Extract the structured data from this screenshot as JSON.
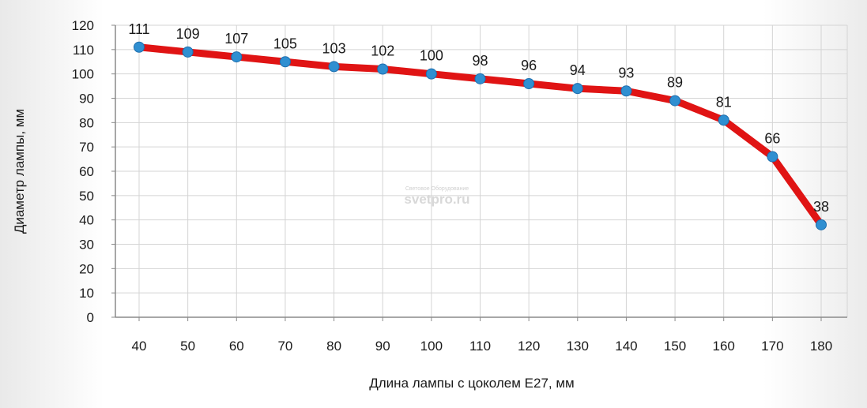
{
  "chart_data": {
    "type": "line",
    "x": [
      40,
      50,
      60,
      70,
      80,
      90,
      100,
      110,
      120,
      130,
      140,
      150,
      160,
      170,
      180
    ],
    "series": [
      {
        "values": [
          111,
          109,
          107,
          105,
          103,
          102,
          100,
          98,
          96,
          94,
          93,
          89,
          81,
          66,
          38
        ]
      }
    ],
    "xlabel": "Длина лампы с цоколем E27, мм",
    "ylabel": "Диаметр лампы, мм",
    "xticks": [
      40,
      50,
      60,
      70,
      80,
      90,
      100,
      110,
      120,
      130,
      140,
      150,
      160,
      170,
      180
    ],
    "yticks": [
      0,
      10,
      20,
      30,
      40,
      50,
      60,
      70,
      80,
      90,
      100,
      110,
      120
    ],
    "ylim": [
      0,
      120
    ],
    "grid": true,
    "legend": "none",
    "data_labels": true,
    "colors": {
      "line": "#e01414",
      "marker": "#2f8fd1",
      "grid": "#d4d4d4",
      "axis": "#8a8a8a"
    }
  },
  "watermark": {
    "small": "Световое Оборудование",
    "big": "svetpro.ru"
  }
}
